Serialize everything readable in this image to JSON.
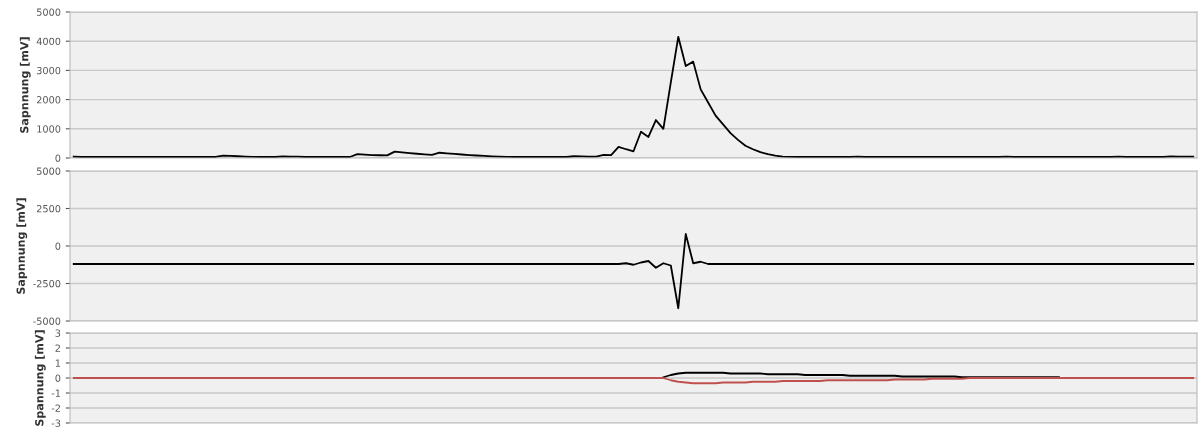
{
  "chart_data": [
    {
      "type": "line",
      "ylabel": "Sapnnung [mV]",
      "ylim": [
        0,
        5000
      ],
      "yticks": [
        0,
        1000,
        2000,
        3000,
        4000,
        5000
      ],
      "grid": "y",
      "tick_labels": "y",
      "marker": "none",
      "line_style": "solid",
      "categories": [
        null,
        null,
        null,
        null,
        null,
        null,
        null,
        null,
        null,
        null,
        null,
        null,
        null,
        null,
        null,
        null,
        null,
        null,
        null,
        null,
        null,
        null,
        null,
        null,
        null,
        null,
        null,
        null,
        null,
        null,
        null,
        null,
        null,
        null,
        null,
        null,
        null,
        null,
        null,
        null,
        null,
        null,
        null,
        null,
        null,
        null,
        null,
        null,
        null,
        null,
        null,
        null,
        null,
        null,
        null,
        null,
        null,
        null,
        null,
        null,
        null,
        null,
        null,
        null,
        null,
        null,
        null,
        null,
        null,
        null,
        null,
        null,
        null,
        null,
        null,
        null,
        null,
        null,
        null,
        null,
        null,
        null,
        null,
        null,
        null,
        null,
        null,
        null,
        null,
        null,
        null,
        null,
        null,
        null,
        null,
        null,
        null,
        null,
        null,
        null,
        null,
        null,
        null,
        null,
        null,
        null,
        null,
        null,
        null,
        null,
        null,
        null,
        null,
        null,
        null,
        null,
        null,
        null,
        null,
        null,
        null,
        null,
        null,
        null,
        null,
        null,
        null,
        null,
        null,
        null,
        null,
        null,
        null,
        null,
        null,
        null,
        null,
        null,
        null,
        null,
        null,
        null,
        null,
        null,
        null,
        null,
        null,
        null,
        null,
        null,
        null
      ],
      "series": [
        {
          "color": "#000000",
          "values": [
            50,
            35,
            35,
            35,
            35,
            35,
            35,
            35,
            35,
            35,
            35,
            35,
            35,
            35,
            35,
            35,
            35,
            35,
            35,
            35,
            80,
            70,
            60,
            50,
            40,
            35,
            35,
            35,
            55,
            50,
            45,
            35,
            35,
            35,
            35,
            35,
            35,
            35,
            130,
            115,
            100,
            95,
            90,
            220,
            190,
            165,
            145,
            125,
            110,
            180,
            160,
            140,
            120,
            100,
            85,
            70,
            55,
            45,
            40,
            35,
            35,
            35,
            35,
            35,
            35,
            35,
            35,
            60,
            55,
            50,
            50,
            110,
            100,
            380,
            300,
            230,
            900,
            720,
            1300,
            1000,
            2590,
            4150,
            3150,
            3300,
            2350,
            1900,
            1450,
            1150,
            850,
            620,
            420,
            300,
            200,
            130,
            80,
            50,
            40,
            35,
            35,
            35,
            35,
            35,
            35,
            35,
            35,
            50,
            35,
            35,
            35,
            35,
            35,
            35,
            35,
            35,
            35,
            35,
            35,
            35,
            35,
            35,
            35,
            35,
            35,
            35,
            35,
            45,
            35,
            35,
            35,
            35,
            35,
            35,
            35,
            35,
            35,
            35,
            35,
            35,
            35,
            35,
            50,
            35,
            35,
            35,
            35,
            35,
            35,
            55,
            50,
            45,
            45
          ]
        }
      ]
    },
    {
      "type": "line",
      "ylabel": "Sapnnung [mV]",
      "ylim": [
        -5000,
        5000
      ],
      "yticks": [
        -5000,
        -2500,
        0,
        2500,
        5000
      ],
      "grid": "y",
      "tick_labels": "y",
      "marker": "none",
      "line_style": "solid",
      "categories": [
        null,
        null,
        null,
        null,
        null,
        null,
        null,
        null,
        null,
        null,
        null,
        null,
        null,
        null,
        null,
        null,
        null,
        null,
        null,
        null,
        null,
        null,
        null,
        null,
        null,
        null,
        null,
        null,
        null,
        null,
        null,
        null,
        null,
        null,
        null,
        null,
        null,
        null,
        null,
        null,
        null,
        null,
        null,
        null,
        null,
        null,
        null,
        null,
        null,
        null,
        null,
        null,
        null,
        null,
        null,
        null,
        null,
        null,
        null,
        null,
        null,
        null,
        null,
        null,
        null,
        null,
        null,
        null,
        null,
        null,
        null,
        null,
        null,
        null,
        null,
        null,
        null,
        null,
        null,
        null,
        null,
        null,
        null,
        null,
        null,
        null,
        null,
        null,
        null,
        null,
        null,
        null,
        null,
        null,
        null,
        null,
        null,
        null,
        null,
        null,
        null,
        null,
        null,
        null,
        null,
        null,
        null,
        null,
        null,
        null,
        null,
        null,
        null,
        null,
        null,
        null,
        null,
        null,
        null,
        null,
        null,
        null,
        null,
        null,
        null,
        null,
        null,
        null,
        null,
        null,
        null,
        null,
        null,
        null,
        null,
        null,
        null,
        null,
        null,
        null,
        null,
        null,
        null,
        null,
        null,
        null,
        null,
        null,
        null,
        null,
        null
      ],
      "series": [
        {
          "color": "#000000",
          "values": [
            -1200,
            -1200,
            -1200,
            -1200,
            -1200,
            -1200,
            -1200,
            -1200,
            -1200,
            -1200,
            -1200,
            -1200,
            -1200,
            -1200,
            -1200,
            -1200,
            -1200,
            -1200,
            -1200,
            -1200,
            -1200,
            -1200,
            -1200,
            -1200,
            -1200,
            -1200,
            -1200,
            -1200,
            -1200,
            -1200,
            -1200,
            -1200,
            -1200,
            -1200,
            -1200,
            -1200,
            -1200,
            -1200,
            -1200,
            -1200,
            -1200,
            -1200,
            -1200,
            -1200,
            -1200,
            -1200,
            -1200,
            -1200,
            -1200,
            -1200,
            -1200,
            -1200,
            -1200,
            -1200,
            -1200,
            -1200,
            -1200,
            -1200,
            -1200,
            -1200,
            -1200,
            -1200,
            -1200,
            -1200,
            -1200,
            -1200,
            -1200,
            -1200,
            -1200,
            -1200,
            -1200,
            -1200,
            -1200,
            -1200,
            -1150,
            -1250,
            -1100,
            -1000,
            -1450,
            -1150,
            -1300,
            -4150,
            800,
            -1150,
            -1050,
            -1200,
            -1200,
            -1200,
            -1200,
            -1200,
            -1200,
            -1200,
            -1200,
            -1200,
            -1200,
            -1200,
            -1200,
            -1200,
            -1200,
            -1200,
            -1200,
            -1200,
            -1200,
            -1200,
            -1200,
            -1200,
            -1200,
            -1200,
            -1200,
            -1200,
            -1200,
            -1200,
            -1200,
            -1200,
            -1200,
            -1200,
            -1200,
            -1200,
            -1200,
            -1200,
            -1200,
            -1200,
            -1200,
            -1200,
            -1200,
            -1200,
            -1200,
            -1200,
            -1200,
            -1200,
            -1200,
            -1200,
            -1200,
            -1200,
            -1200,
            -1200,
            -1200,
            -1200,
            -1200,
            -1200,
            -1200,
            -1200,
            -1200,
            -1200,
            -1200,
            -1200,
            -1200,
            -1200,
            -1200,
            -1200,
            -1200
          ]
        }
      ]
    },
    {
      "type": "line",
      "ylabel": "Spannung [mV]",
      "ylim": [
        -3,
        3
      ],
      "yticks": [
        -3,
        -2,
        -1,
        0,
        1,
        2,
        3
      ],
      "grid": "y",
      "tick_labels": "y",
      "marker": "none",
      "line_style": "solid",
      "categories": [
        null,
        null,
        null,
        null,
        null,
        null,
        null,
        null,
        null,
        null,
        null,
        null,
        null,
        null,
        null,
        null,
        null,
        null,
        null,
        null,
        null,
        null,
        null,
        null,
        null,
        null,
        null,
        null,
        null,
        null,
        null,
        null,
        null,
        null,
        null,
        null,
        null,
        null,
        null,
        null,
        null,
        null,
        null,
        null,
        null,
        null,
        null,
        null,
        null,
        null,
        null,
        null,
        null,
        null,
        null,
        null,
        null,
        null,
        null,
        null,
        null,
        null,
        null,
        null,
        null,
        null,
        null,
        null,
        null,
        null,
        null,
        null,
        null,
        null,
        null,
        null,
        null,
        null,
        null,
        null,
        null,
        null,
        null,
        null,
        null,
        null,
        null,
        null,
        null,
        null,
        null,
        null,
        null,
        null,
        null,
        null,
        null,
        null,
        null,
        null,
        null,
        null,
        null,
        null,
        null,
        null,
        null,
        null,
        null,
        null,
        null,
        null,
        null,
        null,
        null,
        null,
        null,
        null,
        null,
        null,
        null,
        null,
        null,
        null,
        null,
        null,
        null,
        null,
        null,
        null,
        null,
        null,
        null,
        null,
        null,
        null,
        null,
        null,
        null,
        null,
        null,
        null,
        null,
        null,
        null,
        null,
        null,
        null,
        null,
        null,
        null
      ],
      "series": [
        {
          "color": "#000000",
          "values": [
            null,
            null,
            null,
            null,
            null,
            null,
            null,
            null,
            null,
            null,
            null,
            null,
            null,
            null,
            null,
            null,
            null,
            null,
            null,
            null,
            null,
            null,
            null,
            null,
            null,
            null,
            null,
            null,
            null,
            null,
            null,
            null,
            null,
            null,
            null,
            null,
            null,
            null,
            null,
            null,
            null,
            null,
            null,
            null,
            null,
            null,
            null,
            null,
            null,
            null,
            null,
            null,
            null,
            null,
            null,
            null,
            null,
            null,
            null,
            null,
            null,
            null,
            null,
            null,
            null,
            null,
            null,
            null,
            null,
            null,
            null,
            null,
            null,
            null,
            null,
            null,
            null,
            null,
            null,
            0.05,
            0.2,
            0.3,
            0.35,
            0.35,
            0.35,
            0.35,
            0.35,
            0.35,
            0.3,
            0.3,
            0.3,
            0.3,
            0.3,
            0.25,
            0.25,
            0.25,
            0.25,
            0.25,
            0.2,
            0.2,
            0.2,
            0.2,
            0.2,
            0.2,
            0.15,
            0.15,
            0.15,
            0.15,
            0.15,
            0.15,
            0.15,
            0.1,
            0.1,
            0.1,
            0.1,
            0.1,
            0.1,
            0.1,
            0.1,
            0.05,
            0.05,
            0.05,
            0.05,
            0.05,
            0.05,
            0.05,
            0.05,
            0.05,
            0.05,
            0.05,
            0.05,
            0.05,
            0.05,
            null,
            null,
            null,
            null,
            null,
            null,
            null,
            null,
            null,
            null,
            null,
            null,
            null,
            null,
            null,
            null,
            null,
            null
          ]
        },
        {
          "color": "#c0504d",
          "values": [
            0,
            0,
            0,
            0,
            0,
            0,
            0,
            0,
            0,
            0,
            0,
            0,
            0,
            0,
            0,
            0,
            0,
            0,
            0,
            0,
            0,
            0,
            0,
            0,
            0,
            0,
            0,
            0,
            0,
            0,
            0,
            0,
            0,
            0,
            0,
            0,
            0,
            0,
            0,
            0,
            0,
            0,
            0,
            0,
            0,
            0,
            0,
            0,
            0,
            0,
            0,
            0,
            0,
            0,
            0,
            0,
            0,
            0,
            0,
            0,
            0,
            0,
            0,
            0,
            0,
            0,
            0,
            0,
            0,
            0,
            0,
            0,
            0,
            0,
            0,
            0,
            0,
            0,
            0,
            0,
            -0.15,
            -0.25,
            -0.3,
            -0.35,
            -0.35,
            -0.35,
            -0.35,
            -0.3,
            -0.3,
            -0.3,
            -0.3,
            -0.25,
            -0.25,
            -0.25,
            -0.25,
            -0.2,
            -0.2,
            -0.2,
            -0.2,
            -0.2,
            -0.2,
            -0.15,
            -0.15,
            -0.15,
            -0.15,
            -0.15,
            -0.15,
            -0.15,
            -0.15,
            -0.15,
            -0.1,
            -0.1,
            -0.1,
            -0.1,
            -0.1,
            -0.05,
            -0.05,
            -0.05,
            -0.05,
            -0.05,
            0,
            0,
            0,
            0,
            0,
            0,
            0,
            0,
            0,
            0,
            0,
            0,
            0,
            0,
            0,
            0,
            0,
            0,
            0,
            0,
            0,
            0,
            0,
            0,
            0,
            0,
            0,
            0,
            0,
            0,
            0
          ]
        }
      ]
    }
  ]
}
